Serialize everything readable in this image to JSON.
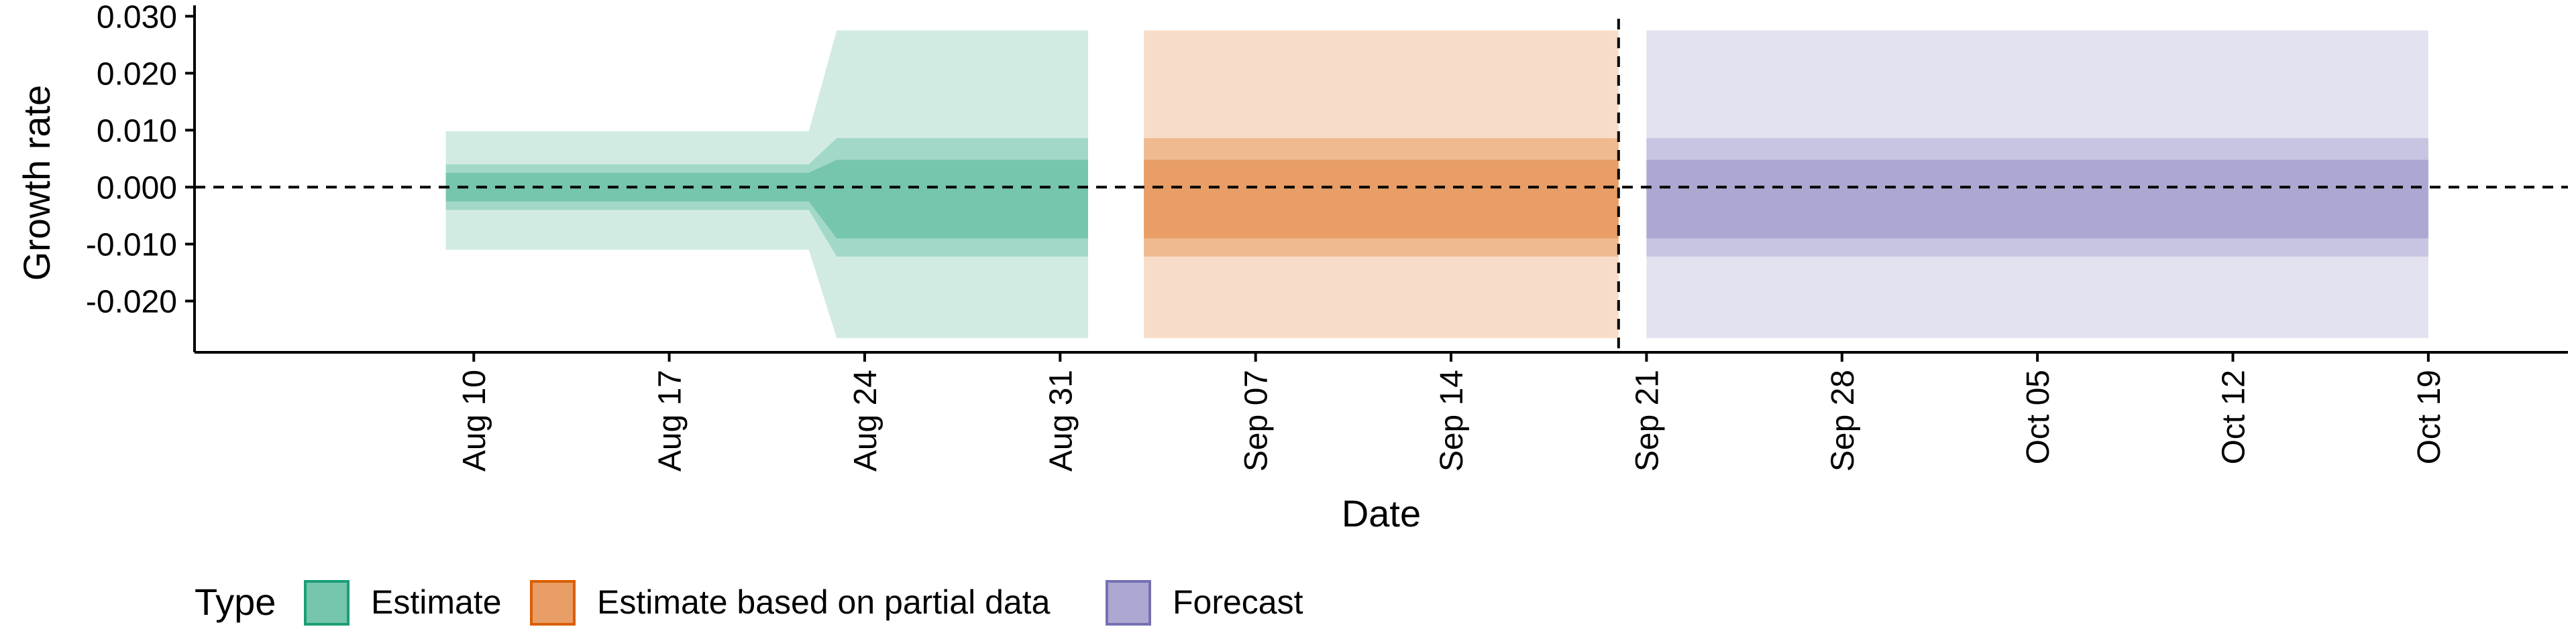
{
  "chart_data": {
    "type": "area",
    "title": "",
    "xlabel": "Date",
    "ylabel": "Growth rate",
    "ylim": [
      -0.029,
      0.0305
    ],
    "xlim": [
      "2020-07-31",
      "2020-10-24"
    ],
    "x_ticks": [
      {
        "date": "2020-08-10",
        "label": "Aug 10"
      },
      {
        "date": "2020-08-17",
        "label": "Aug 17"
      },
      {
        "date": "2020-08-24",
        "label": "Aug 24"
      },
      {
        "date": "2020-08-31",
        "label": "Aug 31"
      },
      {
        "date": "2020-09-07",
        "label": "Sep 07"
      },
      {
        "date": "2020-09-14",
        "label": "Sep 14"
      },
      {
        "date": "2020-09-21",
        "label": "Sep 21"
      },
      {
        "date": "2020-09-28",
        "label": "Sep 28"
      },
      {
        "date": "2020-10-05",
        "label": "Oct 05"
      },
      {
        "date": "2020-10-12",
        "label": "Oct 12"
      },
      {
        "date": "2020-10-19",
        "label": "Oct 19"
      }
    ],
    "y_ticks": [
      {
        "value": 0.03,
        "label": "0.030"
      },
      {
        "value": 0.02,
        "label": "0.020"
      },
      {
        "value": 0.01,
        "label": "0.010"
      },
      {
        "value": 0.0,
        "label": "0.000"
      },
      {
        "value": -0.01,
        "label": "-0.010"
      },
      {
        "value": -0.02,
        "label": "-0.020"
      }
    ],
    "hline_y": 0.0,
    "vline_x": "2020-09-20",
    "grid": false,
    "legend_title": "Type",
    "legend_position": "bottom-left",
    "series": [
      {
        "name": "Estimate",
        "color": "#1B9E77",
        "colors": {
          "band90": "#D1EBE3",
          "band50": "#A1D8C7",
          "band20": "#76C5AD"
        },
        "points": [
          {
            "x": "2020-08-09",
            "lo90": -0.011,
            "hi90": 0.0098,
            "lo50": -0.004,
            "hi50": 0.004,
            "lo20": -0.0025,
            "hi20": 0.0025
          },
          {
            "x": "2020-08-21",
            "lo90": -0.011,
            "hi90": 0.0098,
            "lo50": -0.004,
            "hi50": 0.004,
            "lo20": -0.0025,
            "hi20": 0.0025
          },
          {
            "x": "2020-08-22",
            "lo90": -0.011,
            "hi90": 0.0098,
            "lo50": -0.004,
            "hi50": 0.004,
            "lo20": -0.0025,
            "hi20": 0.0025
          },
          {
            "x": "2020-08-23",
            "lo90": -0.0265,
            "hi90": 0.0275,
            "lo50": -0.0122,
            "hi50": 0.0086,
            "lo20": -0.009,
            "hi20": 0.0048
          },
          {
            "x": "2020-09-01",
            "lo90": -0.0265,
            "hi90": 0.0275,
            "lo50": -0.0122,
            "hi50": 0.0086,
            "lo20": -0.009,
            "hi20": 0.0048
          }
        ]
      },
      {
        "name": "Estimate based on partial data",
        "color": "#D95F02",
        "colors": {
          "band90": "#F7DDC9",
          "band50": "#EFBA8F",
          "band20": "#E89E66"
        },
        "points": [
          {
            "x": "2020-09-03",
            "lo90": -0.0265,
            "hi90": 0.0275,
            "lo50": -0.0122,
            "hi50": 0.0086,
            "lo20": -0.009,
            "hi20": 0.0048
          },
          {
            "x": "2020-09-20",
            "lo90": -0.0265,
            "hi90": 0.0275,
            "lo50": -0.0122,
            "hi50": 0.0086,
            "lo20": -0.009,
            "hi20": 0.0048
          }
        ]
      },
      {
        "name": "Forecast",
        "color": "#7570B3",
        "colors": {
          "band90": "#E3E2F0",
          "band50": "#C7C5E1",
          "band20": "#ACA8D1"
        },
        "points": [
          {
            "x": "2020-09-21",
            "lo90": -0.0265,
            "hi90": 0.0275,
            "lo50": -0.0122,
            "hi50": 0.0086,
            "lo20": -0.009,
            "hi20": 0.0048
          },
          {
            "x": "2020-10-19",
            "lo90": -0.0265,
            "hi90": 0.0275,
            "lo50": -0.0122,
            "hi50": 0.0086,
            "lo20": -0.009,
            "hi20": 0.0048
          }
        ]
      }
    ]
  }
}
